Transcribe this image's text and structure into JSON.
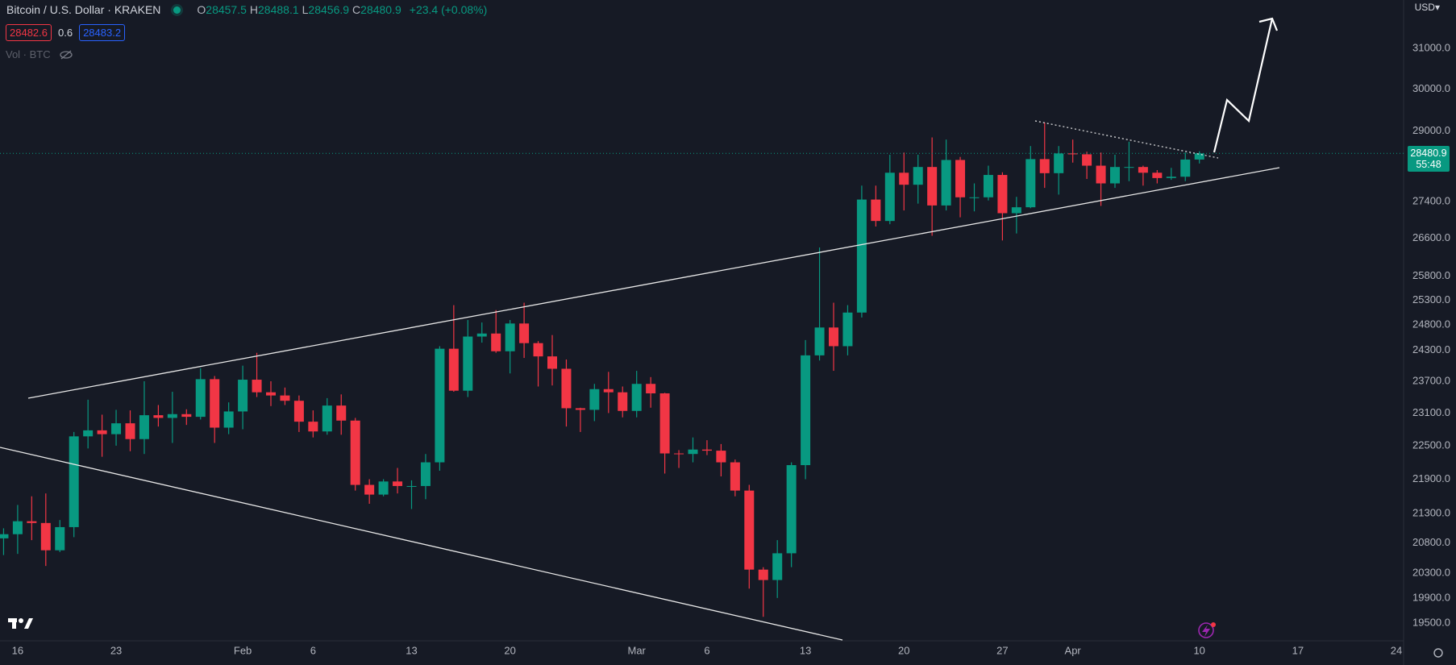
{
  "header": {
    "symbol": "Bitcoin / U.S. Dollar · KRAKEN",
    "ohlc": [
      {
        "key": "O",
        "value": "28457.5"
      },
      {
        "key": "H",
        "value": "28488.1"
      },
      {
        "key": "L",
        "value": "28456.9"
      },
      {
        "key": "C",
        "value": "28480.9"
      }
    ],
    "change": "+23.4 (+0.08%)",
    "bid": "28482.6",
    "spread": "0.6",
    "ask": "28483.2",
    "volume_label": "Vol · BTC",
    "currency": "USD",
    "countdown": "55:48"
  },
  "chart_data": {
    "type": "candlestick",
    "log_scale": true,
    "grid": false,
    "up_color": "#089981",
    "down_color": "#f23645",
    "categories": [
      null,
      "16",
      null,
      null,
      null,
      null,
      null,
      null,
      "23",
      null,
      null,
      null,
      null,
      null,
      null,
      null,
      null,
      "Feb",
      null,
      null,
      null,
      null,
      "6",
      null,
      null,
      null,
      null,
      null,
      null,
      "13",
      null,
      null,
      null,
      null,
      null,
      null,
      "20",
      null,
      null,
      null,
      null,
      null,
      null,
      null,
      null,
      "Mar",
      null,
      null,
      null,
      null,
      "6",
      null,
      null,
      null,
      null,
      null,
      null,
      "13",
      null,
      null,
      null,
      null,
      null,
      null,
      "20",
      null,
      null,
      null,
      null,
      null,
      null,
      "27",
      null,
      null,
      null,
      null,
      "Apr",
      null,
      null,
      null,
      null,
      null,
      null,
      null,
      null,
      "10",
      null,
      null,
      null,
      null,
      null,
      null,
      "17",
      null,
      null,
      null,
      null,
      null,
      null,
      "24",
      null,
      null
    ],
    "open": [
      20880,
      20950,
      21170,
      21140,
      20680,
      21070,
      22670,
      22780,
      22710,
      22910,
      22620,
      23060,
      23010,
      23080,
      23030,
      23740,
      22830,
      23130,
      23730,
      23490,
      23430,
      23330,
      22940,
      22760,
      23240,
      22960,
      21800,
      21630,
      21860,
      21780,
      21780,
      22200,
      24330,
      23520,
      24570,
      24630,
      24280,
      24830,
      24440,
      24180,
      23940,
      23190,
      23160,
      23550,
      23490,
      23140,
      23650,
      23470,
      22360,
      22350,
      22430,
      22410,
      22200,
      21700,
      20360,
      20190,
      20630,
      22150,
      24200,
      24750,
      24380,
      25050,
      27440,
      26970,
      28040,
      27770,
      28170,
      27310,
      28330,
      27490,
      27490,
      27990,
      27140,
      27270,
      28350,
      28030,
      28480,
      28460,
      28200,
      27800,
      28170,
      28170,
      28040,
      27920,
      27950,
      28340,
      null,
      null,
      null,
      null,
      null,
      null,
      null,
      null,
      null,
      null,
      null,
      null,
      null,
      null,
      null,
      null
    ],
    "high": [
      21050,
      21450,
      21600,
      21650,
      21190,
      22750,
      23350,
      23070,
      23160,
      23150,
      23700,
      23250,
      23500,
      23170,
      23950,
      23800,
      23300,
      24000,
      24250,
      23700,
      23580,
      23430,
      23150,
      23380,
      23450,
      23010,
      21900,
      21900,
      22100,
      21880,
      22350,
      24380,
      25200,
      24900,
      24850,
      25100,
      24900,
      25250,
      24480,
      24600,
      24120,
      23200,
      23650,
      23880,
      23600,
      23900,
      23780,
      23480,
      22420,
      22650,
      22600,
      22530,
      22250,
      21800,
      20400,
      20850,
      22200,
      24500,
      26400,
      25250,
      25200,
      27750,
      27750,
      28450,
      28500,
      28450,
      28850,
      28800,
      28400,
      27800,
      28200,
      28050,
      27500,
      28650,
      29200,
      28650,
      28800,
      28520,
      28500,
      28450,
      28750,
      28200,
      28100,
      28150,
      28500,
      28530,
      null,
      null,
      null,
      null,
      null,
      null,
      null,
      null,
      null,
      null,
      null,
      null,
      null,
      null,
      null,
      null
    ],
    "low": [
      20600,
      20620,
      20850,
      20420,
      20650,
      20900,
      22450,
      22300,
      22500,
      22400,
      22350,
      22850,
      22550,
      22880,
      22980,
      22550,
      22710,
      22800,
      23400,
      23230,
      23250,
      22750,
      22650,
      22700,
      22700,
      21700,
      21470,
      21600,
      21650,
      21380,
      21550,
      22050,
      23500,
      23400,
      24450,
      24250,
      23850,
      24150,
      23600,
      23620,
      22850,
      22750,
      22950,
      23100,
      23020,
      23020,
      23200,
      22000,
      22100,
      22200,
      22330,
      21950,
      21600,
      20050,
      19600,
      19900,
      20400,
      21900,
      24100,
      23900,
      24200,
      24950,
      26850,
      26900,
      27200,
      27350,
      26650,
      27200,
      27050,
      27180,
      27420,
      26550,
      26700,
      27250,
      27700,
      27550,
      28270,
      27900,
      27300,
      27700,
      27850,
      27750,
      27800,
      27880,
      27850,
      28250,
      null,
      null,
      null,
      null,
      null,
      null,
      null,
      null,
      null,
      null,
      null,
      null,
      null,
      null,
      null,
      null
    ],
    "close": [
      20950,
      21170,
      21140,
      20680,
      21070,
      22670,
      22780,
      22710,
      22910,
      22620,
      23060,
      23010,
      23080,
      23030,
      23740,
      22830,
      23130,
      23730,
      23490,
      23430,
      23330,
      22940,
      22760,
      23240,
      22960,
      21800,
      21630,
      21860,
      21780,
      21780,
      22200,
      24330,
      23520,
      24570,
      24630,
      24280,
      24830,
      24440,
      24180,
      23940,
      23190,
      23160,
      23550,
      23490,
      23140,
      23650,
      23470,
      22360,
      22350,
      22430,
      22410,
      22200,
      21700,
      20360,
      20190,
      20630,
      22150,
      24200,
      24750,
      24380,
      25050,
      27440,
      26970,
      28040,
      27770,
      28170,
      27310,
      28330,
      27490,
      27490,
      27990,
      27140,
      27270,
      28350,
      28030,
      28480,
      28460,
      28200,
      27800,
      28170,
      28170,
      28040,
      27920,
      27950,
      28340,
      28480.9,
      null,
      null,
      null,
      null,
      null,
      null,
      null,
      null,
      null,
      null,
      null,
      null,
      null,
      null,
      null,
      null
    ],
    "ylim": [
      19224,
      32231
    ],
    "yticks": [
      {
        "value": 31000,
        "label": "31000.0"
      },
      {
        "value": 30000,
        "label": "30000.0"
      },
      {
        "value": 29000,
        "label": "29000.0"
      },
      {
        "value": 27400,
        "label": "27400.0"
      },
      {
        "value": 26600,
        "label": "26600.0"
      },
      {
        "value": 25800,
        "label": "25800.0"
      },
      {
        "value": 25300,
        "label": "25300.0"
      },
      {
        "value": 24800,
        "label": "24800.0"
      },
      {
        "value": 24300,
        "label": "24300.0"
      },
      {
        "value": 23700,
        "label": "23700.0"
      },
      {
        "value": 23100,
        "label": "23100.0"
      },
      {
        "value": 22500,
        "label": "22500.0"
      },
      {
        "value": 21900,
        "label": "21900.0"
      },
      {
        "value": 21300,
        "label": "21300.0"
      },
      {
        "value": 20800,
        "label": "20800.0"
      },
      {
        "value": 20300,
        "label": "20300.0"
      },
      {
        "value": 19900,
        "label": "19900.0"
      },
      {
        "value": 19500,
        "label": "19500.0"
      }
    ]
  }
}
